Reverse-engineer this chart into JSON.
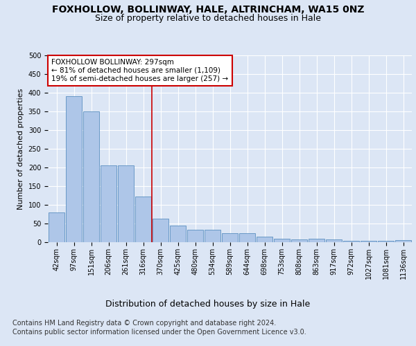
{
  "title1": "FOXHOLLOW, BOLLINWAY, HALE, ALTRINCHAM, WA15 0NZ",
  "title2": "Size of property relative to detached houses in Hale",
  "xlabel": "Distribution of detached houses by size in Hale",
  "ylabel": "Number of detached properties",
  "categories": [
    "42sqm",
    "97sqm",
    "151sqm",
    "206sqm",
    "261sqm",
    "316sqm",
    "370sqm",
    "425sqm",
    "480sqm",
    "534sqm",
    "589sqm",
    "644sqm",
    "698sqm",
    "753sqm",
    "808sqm",
    "863sqm",
    "917sqm",
    "972sqm",
    "1027sqm",
    "1081sqm",
    "1136sqm"
  ],
  "values": [
    80,
    390,
    350,
    205,
    205,
    122,
    63,
    45,
    33,
    33,
    25,
    25,
    15,
    10,
    7,
    10,
    7,
    3,
    3,
    3,
    5
  ],
  "bar_color": "#aec6e8",
  "bar_edge_color": "#5a8fc0",
  "vline_x": 5.5,
  "vline_color": "#cc0000",
  "annotation_text": "FOXHOLLOW BOLLINWAY: 297sqm\n← 81% of detached houses are smaller (1,109)\n19% of semi-detached houses are larger (257) →",
  "annotation_box_color": "#ffffff",
  "annotation_box_edge": "#cc0000",
  "ylim": [
    0,
    500
  ],
  "yticks": [
    0,
    50,
    100,
    150,
    200,
    250,
    300,
    350,
    400,
    450,
    500
  ],
  "footer1": "Contains HM Land Registry data © Crown copyright and database right 2024.",
  "footer2": "Contains public sector information licensed under the Open Government Licence v3.0.",
  "bg_color": "#dce6f5",
  "plot_bg_color": "#dce6f5",
  "title1_fontsize": 10,
  "title2_fontsize": 9,
  "annotation_fontsize": 7.5,
  "axis_fontsize": 7,
  "ylabel_fontsize": 8,
  "xlabel_fontsize": 9,
  "footer_fontsize": 7
}
